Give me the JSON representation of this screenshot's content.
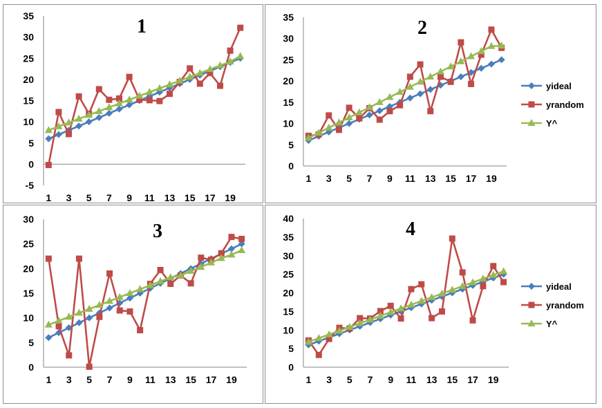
{
  "chart_data": [
    {
      "type": "line",
      "title": "1",
      "categories": [
        1,
        2,
        3,
        4,
        5,
        6,
        7,
        8,
        9,
        10,
        11,
        12,
        13,
        14,
        15,
        16,
        17,
        18,
        19,
        20
      ],
      "x_tick_labels": [
        "1",
        "3",
        "5",
        "7",
        "9",
        "11",
        "13",
        "15",
        "17",
        "19"
      ],
      "ylim": [
        -5,
        35
      ],
      "y_ticks": [
        -5,
        0,
        5,
        10,
        15,
        20,
        25,
        30,
        35
      ],
      "legend": false,
      "series": [
        {
          "name": "yideal",
          "color": "#4a7ebb",
          "marker": "diamond",
          "values": [
            6,
            7,
            8,
            9,
            10,
            11,
            12,
            13,
            14,
            15,
            16,
            17,
            18,
            19,
            20,
            21,
            22,
            23,
            24,
            25
          ]
        },
        {
          "name": "yrandom",
          "color": "#be4b48",
          "marker": "square",
          "values": [
            -0.2,
            12.3,
            7.1,
            16,
            11.9,
            17.7,
            15.2,
            15.5,
            20.6,
            15.2,
            15.1,
            14.9,
            16.6,
            19.4,
            22.6,
            19,
            21.5,
            18.5,
            26.8,
            32.2
          ]
        },
        {
          "name": "Y^",
          "color": "#98b954",
          "marker": "triangle",
          "values": [
            8,
            8.9,
            9.8,
            10.7,
            11.6,
            12.5,
            13.4,
            14.3,
            15.2,
            16.1,
            17,
            17.9,
            18.8,
            19.7,
            20.6,
            21.5,
            22.4,
            23.3,
            24.2,
            25.5
          ]
        }
      ]
    },
    {
      "type": "line",
      "title": "2",
      "categories": [
        1,
        2,
        3,
        4,
        5,
        6,
        7,
        8,
        9,
        10,
        11,
        12,
        13,
        14,
        15,
        16,
        17,
        18,
        19,
        20
      ],
      "x_tick_labels": [
        "1",
        "3",
        "5",
        "7",
        "9",
        "11",
        "13",
        "15",
        "17",
        "19"
      ],
      "ylim": [
        0,
        35
      ],
      "y_ticks": [
        0,
        5,
        10,
        15,
        20,
        25,
        30,
        35
      ],
      "legend": true,
      "series": [
        {
          "name": "yideal",
          "color": "#4a7ebb",
          "marker": "diamond",
          "values": [
            6,
            7,
            8,
            9,
            10,
            11,
            12,
            13,
            14,
            15,
            16,
            17,
            18,
            19,
            20,
            21,
            22,
            23,
            24,
            25
          ]
        },
        {
          "name": "yrandom",
          "color": "#be4b48",
          "marker": "square",
          "values": [
            7.1,
            7.4,
            11.9,
            8.5,
            13.7,
            11.2,
            13.6,
            10.9,
            12.9,
            14.3,
            21,
            23.9,
            12.9,
            21,
            19.8,
            29.1,
            19.3,
            26.2,
            32.1,
            27.8
          ]
        },
        {
          "name": "Y^",
          "color": "#98b954",
          "marker": "triangle",
          "values": [
            6.6,
            7.8,
            9,
            10.2,
            11.4,
            12.6,
            13.8,
            15,
            16.2,
            17.4,
            18.6,
            19.8,
            21,
            22.2,
            23.4,
            24.6,
            25.8,
            27,
            28.2,
            28.3
          ]
        }
      ]
    },
    {
      "type": "line",
      "title": "3",
      "categories": [
        1,
        2,
        3,
        4,
        5,
        6,
        7,
        8,
        9,
        10,
        11,
        12,
        13,
        14,
        15,
        16,
        17,
        18,
        19,
        20
      ],
      "x_tick_labels": [
        "1",
        "3",
        "5",
        "7",
        "9",
        "11",
        "13",
        "15",
        "17",
        "19"
      ],
      "ylim": [
        0,
        30
      ],
      "y_ticks": [
        0,
        5,
        10,
        15,
        20,
        25,
        30
      ],
      "legend": false,
      "series": [
        {
          "name": "yideal",
          "color": "#4a7ebb",
          "marker": "diamond",
          "values": [
            6,
            7,
            8,
            9,
            10,
            11,
            12,
            13,
            14,
            15,
            16,
            17,
            18,
            19,
            20,
            21,
            22,
            23,
            24,
            25
          ]
        },
        {
          "name": "yrandom",
          "color": "#be4b48",
          "marker": "square",
          "values": [
            22,
            8.3,
            2.4,
            22,
            0.1,
            10.2,
            19,
            11.5,
            11.3,
            7.5,
            16.9,
            19.7,
            16.9,
            18.6,
            17,
            22.2,
            21.8,
            23.1,
            26.4,
            26
          ]
        },
        {
          "name": "Y^",
          "color": "#98b954",
          "marker": "triangle",
          "values": [
            8.6,
            9.4,
            10.2,
            11,
            11.8,
            12.6,
            13.4,
            14.2,
            15,
            15.8,
            16.6,
            17.4,
            18.2,
            18.6,
            19.5,
            20.3,
            21.2,
            22.1,
            22.8,
            23.7
          ]
        }
      ]
    },
    {
      "type": "line",
      "title": "4",
      "categories": [
        1,
        2,
        3,
        4,
        5,
        6,
        7,
        8,
        9,
        10,
        11,
        12,
        13,
        14,
        15,
        16,
        17,
        18,
        19,
        20
      ],
      "x_tick_labels": [
        "1",
        "3",
        "5",
        "7",
        "9",
        "11",
        "13",
        "15",
        "17",
        "19"
      ],
      "ylim": [
        0,
        40
      ],
      "y_ticks": [
        0,
        5,
        10,
        15,
        20,
        25,
        30,
        35,
        40
      ],
      "legend": true,
      "series": [
        {
          "name": "yideal",
          "color": "#4a7ebb",
          "marker": "diamond",
          "values": [
            6,
            7,
            8,
            9,
            10,
            11,
            12,
            13,
            14,
            15,
            16,
            17,
            18,
            19,
            20,
            21,
            22,
            23,
            24,
            25
          ]
        },
        {
          "name": "yrandom",
          "color": "#be4b48",
          "marker": "square",
          "values": [
            7.2,
            3.3,
            7.6,
            10.6,
            10.4,
            13.2,
            13.1,
            15.1,
            16.5,
            13.1,
            21,
            22.3,
            13.2,
            15,
            34.6,
            25.5,
            12.6,
            21.8,
            27.2,
            22.9
          ]
        },
        {
          "name": "Y^",
          "color": "#98b954",
          "marker": "triangle",
          "values": [
            6.8,
            7.8,
            8.8,
            9.8,
            10.8,
            11.8,
            12.8,
            13.8,
            14.8,
            15.8,
            16.8,
            17.8,
            18.8,
            19.8,
            20.8,
            21.8,
            22.8,
            23.8,
            24.8,
            25.8
          ]
        }
      ]
    }
  ]
}
